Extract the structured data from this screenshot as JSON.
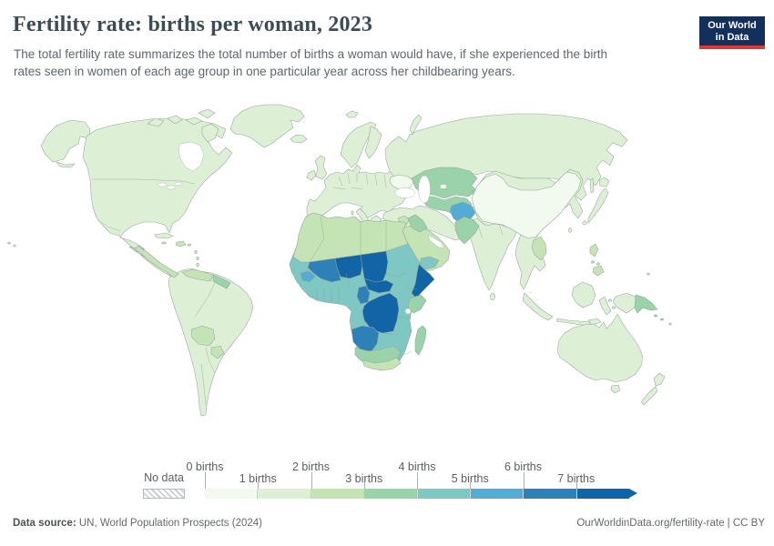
{
  "header": {
    "title": "Fertility rate: births per woman, 2023",
    "subtitle_line1": "The total fertility rate summarizes the total number of births a woman would have, if she experienced the birth",
    "subtitle_line2": "rates seen in women of each age group in one particular year across her childbearing years.",
    "logo_line1": "Our World",
    "logo_line2": "in Data",
    "logo_bg": "#12305b",
    "logo_accent": "#e0392f"
  },
  "legend": {
    "no_data_label": "No data",
    "tick_labels": [
      "0 births",
      "1 births",
      "2 births",
      "3 births",
      "4 births",
      "5 births",
      "6 births",
      "7 births"
    ]
  },
  "footer": {
    "source_prefix": "Data source:",
    "source_text": " UN, World Population Prospects (2024)",
    "credit": "OurWorldinData.org/fertility-rate | CC BY"
  },
  "chart_data": {
    "type": "choropleth",
    "title": "Fertility rate: births per woman, 2023",
    "unit": "births per woman",
    "year": 2023,
    "legend_bins": [
      {
        "range": "0-1",
        "color": "#f2f9ee"
      },
      {
        "range": "1-2",
        "color": "#ddefd4"
      },
      {
        "range": "2-3",
        "color": "#c4e4b6"
      },
      {
        "range": "3-4",
        "color": "#9ad2aa"
      },
      {
        "range": "4-5",
        "color": "#7ec7c3"
      },
      {
        "range": "5-6",
        "color": "#54acd4"
      },
      {
        "range": "6-7",
        "color": "#2e80b8"
      },
      {
        "range": "7+",
        "color": "#1165a7"
      }
    ],
    "no_data": {
      "label": "No data",
      "style": "hatched"
    },
    "regions": {
      "alaska": "1-2",
      "north-america": "1-2",
      "canadian-arctic": "1-2",
      "greenland": "1-2",
      "iceland": "1-2",
      "cuba": "1-2",
      "hispaniola": "2-3",
      "caribbean-small": "2-3",
      "central-america": "2-3",
      "south-america": "1-2",
      "venezuela": "2-3",
      "guyanas": "3-4",
      "bolivia": "2-3",
      "paraguay": "2-3",
      "europe": "1-2",
      "uk": "1-2",
      "ireland": "1-2",
      "italy": "1-2",
      "greece": "1-2",
      "scandinavia": "1-2",
      "finland": "1-2",
      "svalbard": "1-2",
      "ukraine": "0-1",
      "russia": "1-2",
      "novaya-zemlya": "1-2",
      "sakhalin": "1-2",
      "anatolia-iran": "1-2",
      "levant": "2-3",
      "iraq": "3-4",
      "arabia": "2-3",
      "yemen": "4-5",
      "kazakhstan": "3-4",
      "uzbekistan-turkmenistan": "3-4",
      "kyrgyzstan-tajikistan": "3-4",
      "afghanistan": "5-6",
      "pakistan": "3-4",
      "south-asia": "1-2",
      "sri-lanka": "1-2",
      "china": "0-1",
      "east-asia-base": "1-2",
      "laos-cambodia": "2-3",
      "japan": "1-2",
      "taiwan": "1-2",
      "philippines": "2-3",
      "indonesia": "1-2",
      "new-guinea-west": "1-2",
      "papua-new-guinea": "3-4",
      "pacific-islands": "2-3",
      "australia": "1-2",
      "tasmania": "1-2",
      "new-zealand": "1-2",
      "africa": "4-5",
      "north-africa": "2-3",
      "mali": "6-7",
      "niger": "7+",
      "chad": "7+",
      "central-african-republic": "7+",
      "cameroon": "6-7",
      "guinea": "5-6",
      "drc": "7+",
      "somalia": "7+",
      "kenya": "3-4",
      "angola": "6-7",
      "southern-africa": "3-4",
      "south-africa-botswana": "2-3",
      "madagascar": "3-4"
    }
  }
}
